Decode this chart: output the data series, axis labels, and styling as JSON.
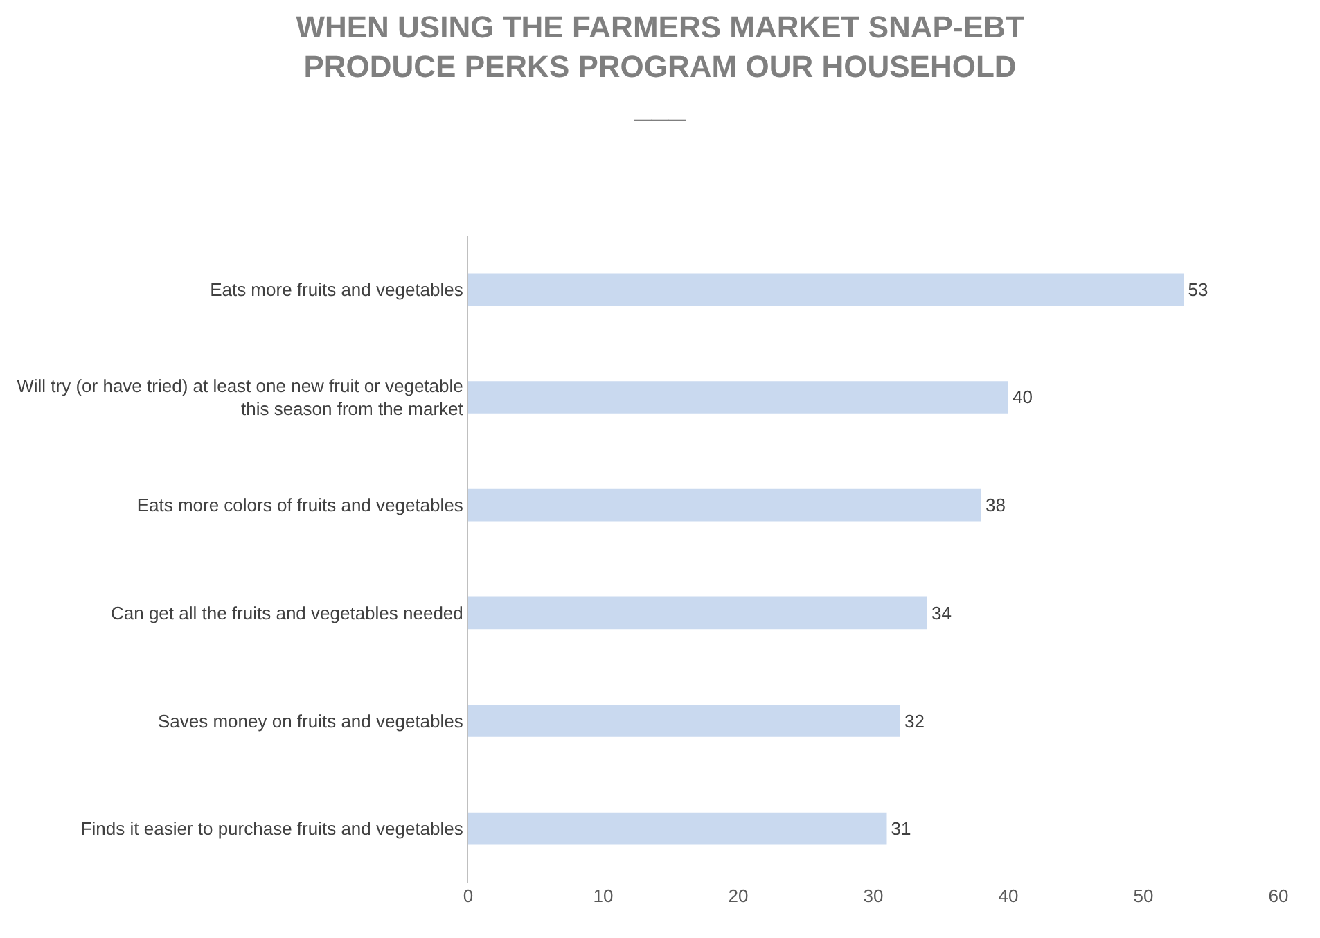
{
  "chart_data": {
    "type": "bar",
    "orientation": "horizontal",
    "title": "WHEN USING THE FARMERS MARKET SNAP-EBT PRODUCE PERKS PROGRAM OUR HOUSEHOLD ___",
    "categories": [
      "Eats more fruits and vegetables",
      "Will try (or have tried) at least one new fruit or vegetable this season from the market",
      "Eats more colors of fruits and vegetables",
      "Can get all the fruits and vegetables needed",
      "Saves money on fruits and vegetables",
      "Finds it easier to purchase fruits and vegetables"
    ],
    "values": [
      53,
      40,
      38,
      34,
      32,
      31
    ],
    "color": "#c9d9ef",
    "xlim": [
      0,
      60
    ],
    "xticks": [
      0,
      10,
      20,
      30,
      40,
      50,
      60
    ],
    "data_labels": true
  }
}
